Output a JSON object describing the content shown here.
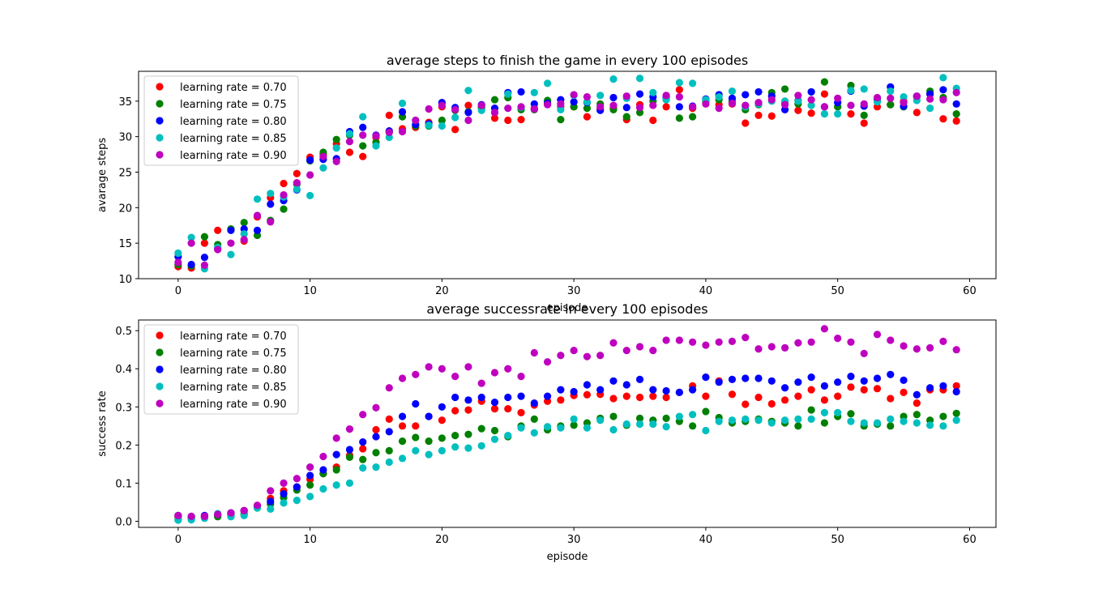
{
  "chart_data": [
    {
      "type": "scatter",
      "title": "average steps to finish the game in every 100 episodes",
      "xlabel": "episode",
      "ylabel": "avarage steps",
      "xlim": [
        -3,
        62
      ],
      "ylim": [
        10,
        39.2
      ],
      "xticks": [
        0,
        10,
        20,
        30,
        40,
        50,
        60
      ],
      "yticks": [
        10,
        15,
        20,
        25,
        30,
        35
      ],
      "legend_position": "top-left",
      "x": [
        0,
        1,
        2,
        3,
        4,
        5,
        6,
        7,
        8,
        9,
        10,
        11,
        12,
        13,
        14,
        15,
        16,
        17,
        18,
        19,
        20,
        21,
        22,
        23,
        24,
        25,
        26,
        27,
        28,
        29,
        30,
        31,
        32,
        33,
        34,
        35,
        36,
        37,
        38,
        39,
        40,
        41,
        42,
        43,
        44,
        45,
        46,
        47,
        48,
        49,
        50,
        51,
        52,
        53,
        54,
        55,
        56,
        57,
        58,
        59
      ],
      "series": [
        {
          "name": "learning rate = 0.70",
          "color": "#ff0000",
          "values": [
            11.7,
            11.5,
            15.0,
            16.8,
            16.9,
            15.3,
            18.7,
            21.4,
            23.4,
            24.8,
            27.1,
            27.5,
            29.0,
            27.8,
            27.2,
            29.9,
            33.0,
            31.1,
            31.3,
            32.0,
            34.2,
            31.0,
            34.4,
            34.0,
            32.6,
            32.3,
            32.4,
            34.0,
            35.0,
            34.2,
            34.2,
            32.8,
            33.9,
            34.0,
            32.4,
            34.5,
            32.3,
            34.2,
            36.6,
            34.0,
            35.0,
            34.5,
            34.6,
            31.9,
            33.0,
            32.9,
            34.8,
            33.7,
            33.3,
            36.0,
            34.2,
            33.2,
            31.9,
            34.2,
            34.5,
            35.0,
            33.4,
            36.0,
            32.5,
            32.2
          ]
        },
        {
          "name": "learning rate = 0.75",
          "color": "#008000",
          "values": [
            12.0,
            11.8,
            15.9,
            14.8,
            17.0,
            17.9,
            16.1,
            18.2,
            19.8,
            23.3,
            26.6,
            27.8,
            29.6,
            30.2,
            28.7,
            29.2,
            30.6,
            32.8,
            31.5,
            31.5,
            32.3,
            33.7,
            33.5,
            34.2,
            35.2,
            35.5,
            33.8,
            33.8,
            35.1,
            32.4,
            34.2,
            34.0,
            34.6,
            33.8,
            32.8,
            33.4,
            35.0,
            35.3,
            32.6,
            32.8,
            35.0,
            35.2,
            35.0,
            33.8,
            34.5,
            36.2,
            36.7,
            34.6,
            36.3,
            37.7,
            34.2,
            37.2,
            33.0,
            35.0,
            34.5,
            34.2,
            35.6,
            36.4,
            35.5,
            33.2
          ]
        },
        {
          "name": "learning rate = 0.80",
          "color": "#0000ff",
          "values": [
            13.1,
            12.0,
            13.0,
            14.2,
            16.8,
            17.0,
            16.8,
            20.5,
            21.0,
            22.5,
            26.7,
            26.8,
            26.9,
            30.7,
            31.3,
            30.2,
            30.8,
            33.5,
            31.7,
            31.8,
            34.8,
            34.1,
            33.4,
            34.5,
            34.0,
            36.2,
            36.3,
            34.6,
            34.7,
            35.2,
            34.9,
            34.8,
            33.7,
            35.5,
            34.1,
            36.0,
            35.6,
            35.6,
            34.2,
            34.3,
            35.3,
            35.9,
            35.4,
            35.9,
            36.3,
            35.7,
            33.8,
            35.1,
            36.3,
            34.2,
            34.8,
            36.4,
            34.3,
            35.3,
            37.0,
            34.3,
            35.7,
            36.0,
            36.6,
            34.6
          ]
        },
        {
          "name": "learning rate = 0.85",
          "color": "#00bfbf",
          "values": [
            13.6,
            15.8,
            11.4,
            14.4,
            13.4,
            16.3,
            21.2,
            22.0,
            21.5,
            22.6,
            21.7,
            25.6,
            28.4,
            30.4,
            32.8,
            28.7,
            29.9,
            34.7,
            32.3,
            31.6,
            31.5,
            32.7,
            36.5,
            33.7,
            33.4,
            36.0,
            34.1,
            36.2,
            37.5,
            33.8,
            35.8,
            34.9,
            35.8,
            38.1,
            35.4,
            38.2,
            36.2,
            35.2,
            37.6,
            37.5,
            35.2,
            35.6,
            36.4,
            34.2,
            34.6,
            35.0,
            35.0,
            35.0,
            34.4,
            33.2,
            33.2,
            36.5,
            36.7,
            34.9,
            36.4,
            35.6,
            35.1,
            34.0,
            38.3,
            36.8
          ]
        },
        {
          "name": "learning rate = 0.90",
          "color": "#bf00bf",
          "values": [
            12.3,
            15.0,
            11.9,
            14.1,
            15.0,
            15.5,
            18.9,
            18.0,
            21.8,
            23.5,
            24.6,
            27.2,
            26.5,
            29.3,
            30.2,
            30.1,
            30.6,
            30.7,
            32.3,
            33.9,
            34.4,
            33.8,
            32.3,
            34.4,
            33.4,
            34.0,
            34.2,
            33.9,
            34.5,
            34.6,
            35.9,
            35.6,
            34.2,
            34.4,
            35.7,
            34.1,
            34.4,
            35.8,
            35.6,
            34.2,
            34.6,
            34.0,
            34.7,
            34.4,
            34.8,
            35.2,
            34.5,
            35.8,
            35.2,
            34.2,
            35.4,
            34.4,
            34.6,
            35.5,
            35.4,
            34.8,
            35.7,
            35.3,
            35.2,
            36.2
          ]
        }
      ]
    },
    {
      "type": "scatter",
      "title": "average successrate in every 100 episodes",
      "xlabel": "episode",
      "ylabel": "success rate",
      "xlim": [
        -3,
        62
      ],
      "ylim": [
        -0.016,
        0.528
      ],
      "xticks": [
        0,
        10,
        20,
        30,
        40,
        50,
        60
      ],
      "yticks": [
        0.0,
        0.1,
        0.2,
        0.3,
        0.4,
        0.5
      ],
      "legend_position": "top-left",
      "x": [
        0,
        1,
        2,
        3,
        4,
        5,
        6,
        7,
        8,
        9,
        10,
        11,
        12,
        13,
        14,
        15,
        16,
        17,
        18,
        19,
        20,
        21,
        22,
        23,
        24,
        25,
        26,
        27,
        28,
        29,
        30,
        31,
        32,
        33,
        34,
        35,
        36,
        37,
        38,
        39,
        40,
        41,
        42,
        43,
        44,
        45,
        46,
        47,
        48,
        49,
        50,
        51,
        52,
        53,
        54,
        55,
        56,
        57,
        58,
        59
      ],
      "series": [
        {
          "name": "learning rate = 0.70",
          "color": "#ff0000",
          "values": [
            0.012,
            0.01,
            0.012,
            0.015,
            0.02,
            0.028,
            0.04,
            0.06,
            0.08,
            0.09,
            0.11,
            0.125,
            0.142,
            0.173,
            0.19,
            0.24,
            0.268,
            0.25,
            0.25,
            0.275,
            0.265,
            0.29,
            0.292,
            0.315,
            0.295,
            0.295,
            0.285,
            0.305,
            0.315,
            0.318,
            0.33,
            0.332,
            0.333,
            0.322,
            0.328,
            0.325,
            0.328,
            0.325,
            0.338,
            0.355,
            0.328,
            0.368,
            0.333,
            0.307,
            0.325,
            0.308,
            0.318,
            0.328,
            0.345,
            0.318,
            0.328,
            0.352,
            0.345,
            0.348,
            0.322,
            0.338,
            0.31,
            0.345,
            0.345,
            0.355
          ]
        },
        {
          "name": "learning rate = 0.75",
          "color": "#008000",
          "values": [
            0.005,
            0.008,
            0.01,
            0.012,
            0.015,
            0.02,
            0.035,
            0.045,
            0.062,
            0.082,
            0.095,
            0.125,
            0.135,
            0.168,
            0.162,
            0.18,
            0.185,
            0.21,
            0.22,
            0.21,
            0.218,
            0.225,
            0.228,
            0.243,
            0.238,
            0.222,
            0.25,
            0.268,
            0.24,
            0.25,
            0.252,
            0.258,
            0.27,
            0.275,
            0.252,
            0.27,
            0.265,
            0.27,
            0.262,
            0.25,
            0.288,
            0.272,
            0.258,
            0.262,
            0.268,
            0.262,
            0.258,
            0.25,
            0.292,
            0.258,
            0.275,
            0.282,
            0.25,
            0.255,
            0.25,
            0.275,
            0.28,
            0.265,
            0.275,
            0.283
          ]
        },
        {
          "name": "learning rate = 0.80",
          "color": "#0000ff",
          "values": [
            0.015,
            0.012,
            0.015,
            0.018,
            0.022,
            0.028,
            0.04,
            0.052,
            0.072,
            0.09,
            0.12,
            0.135,
            0.175,
            0.188,
            0.208,
            0.222,
            0.235,
            0.275,
            0.308,
            0.275,
            0.3,
            0.325,
            0.318,
            0.325,
            0.312,
            0.325,
            0.328,
            0.31,
            0.328,
            0.345,
            0.34,
            0.358,
            0.345,
            0.368,
            0.358,
            0.372,
            0.345,
            0.342,
            0.338,
            0.345,
            0.378,
            0.365,
            0.372,
            0.375,
            0.375,
            0.368,
            0.35,
            0.365,
            0.378,
            0.355,
            0.365,
            0.38,
            0.368,
            0.375,
            0.385,
            0.37,
            0.332,
            0.35,
            0.355,
            0.34
          ]
        },
        {
          "name": "learning rate = 0.85",
          "color": "#00bfbf",
          "values": [
            0.003,
            0.004,
            0.008,
            0.02,
            0.012,
            0.015,
            0.035,
            0.032,
            0.048,
            0.055,
            0.065,
            0.085,
            0.095,
            0.1,
            0.14,
            0.142,
            0.155,
            0.165,
            0.185,
            0.175,
            0.185,
            0.195,
            0.192,
            0.198,
            0.215,
            0.225,
            0.245,
            0.232,
            0.248,
            0.245,
            0.268,
            0.245,
            0.265,
            0.24,
            0.255,
            0.255,
            0.255,
            0.248,
            0.275,
            0.28,
            0.238,
            0.262,
            0.265,
            0.268,
            0.265,
            0.258,
            0.265,
            0.268,
            0.268,
            0.285,
            0.285,
            0.262,
            0.258,
            0.258,
            0.268,
            0.262,
            0.258,
            0.252,
            0.25,
            0.265
          ]
        },
        {
          "name": "learning rate = 0.90",
          "color": "#bf00bf",
          "values": [
            0.015,
            0.013,
            0.013,
            0.018,
            0.022,
            0.028,
            0.042,
            0.08,
            0.1,
            0.112,
            0.142,
            0.17,
            0.218,
            0.242,
            0.28,
            0.298,
            0.35,
            0.375,
            0.385,
            0.405,
            0.4,
            0.38,
            0.405,
            0.362,
            0.39,
            0.4,
            0.38,
            0.442,
            0.418,
            0.435,
            0.448,
            0.432,
            0.435,
            0.468,
            0.448,
            0.458,
            0.448,
            0.475,
            0.475,
            0.47,
            0.462,
            0.47,
            0.472,
            0.482,
            0.452,
            0.458,
            0.455,
            0.468,
            0.47,
            0.505,
            0.48,
            0.47,
            0.44,
            0.49,
            0.475,
            0.46,
            0.452,
            0.455,
            0.472,
            0.45
          ]
        }
      ]
    }
  ]
}
